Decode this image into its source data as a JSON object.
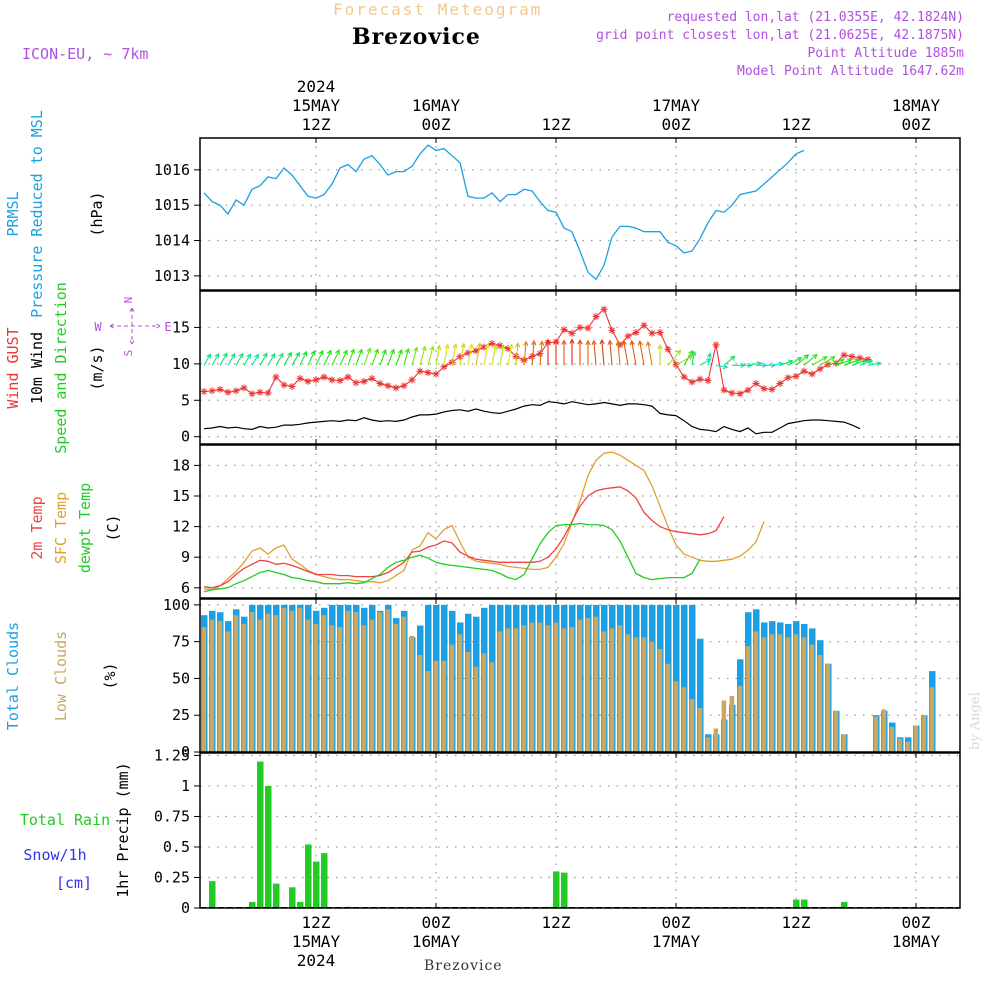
{
  "header": {
    "title": "Forecast Meteogram",
    "location": "Brezovice",
    "model": "ICON-EU, ~ 7km",
    "requested": "requested lon,lat (21.0355E, 42.1824N)",
    "grid_point": "grid point closest lon,lat (21.0625E, 42.1875N)",
    "point_altitude": "Point Altitude 1885m",
    "model_altitude": "Model Point Altitude 1647.62m",
    "credit": "by Angel",
    "bottom_label": "Brezovice"
  },
  "colors": {
    "pressure": "#1aa0e6",
    "gust": "#ee3333",
    "wind": "#000000",
    "temp2m": "#ee4444",
    "sfc_temp": "#e0a030",
    "dewpt": "#22cc22",
    "total_clouds": "#1aa0e6",
    "low_clouds": "#c8a860",
    "rain": "#22cc22",
    "snow": "#3333ee",
    "compass": "#b050e0"
  },
  "chart_data": {
    "type": "line",
    "x_unit": "hours",
    "x_range": [
      0,
      95
    ],
    "time_axis": {
      "top_ticks": [
        {
          "hour": 14.5,
          "lines": [
            "2024",
            "15MAY",
            "12Z"
          ]
        },
        {
          "hour": 29.5,
          "lines": [
            "16MAY",
            "00Z"
          ]
        },
        {
          "hour": 44.5,
          "lines": [
            "12Z"
          ]
        },
        {
          "hour": 59.5,
          "lines": [
            "17MAY",
            "00Z"
          ]
        },
        {
          "hour": 74.5,
          "lines": [
            "12Z"
          ]
        },
        {
          "hour": 89.5,
          "lines": [
            "18MAY",
            "00Z"
          ]
        }
      ],
      "bottom_ticks": [
        {
          "hour": 14.5,
          "lines": [
            "12Z",
            "15MAY",
            "2024"
          ]
        },
        {
          "hour": 29.5,
          "lines": [
            "00Z",
            "16MAY"
          ]
        },
        {
          "hour": 44.5,
          "lines": [
            "12Z"
          ]
        },
        {
          "hour": 59.5,
          "lines": [
            "00Z",
            "17MAY"
          ]
        },
        {
          "hour": 74.5,
          "lines": [
            "12Z"
          ]
        },
        {
          "hour": 89.5,
          "lines": [
            "00Z",
            "18MAY"
          ]
        }
      ]
    },
    "panels": [
      {
        "id": "pressure",
        "labels": [
          {
            "text": "PRMSL",
            "color": "#1aa0e6"
          },
          {
            "text": "Pressure Reduced to MSL",
            "color": "#1aa0e6"
          },
          {
            "text": "(hPa)",
            "color": "#000000"
          }
        ],
        "ylim": [
          1012.6,
          1016.9
        ],
        "yticks": [
          1013,
          1014,
          1015,
          1016
        ],
        "series": [
          {
            "values": [
              1015.35,
              1015.1,
              1015.0,
              1014.75,
              1015.15,
              1015.0,
              1015.45,
              1015.55,
              1015.8,
              1015.75,
              1016.05,
              1015.85,
              1015.55,
              1015.25,
              1015.2,
              1015.3,
              1015.6,
              1016.05,
              1016.15,
              1015.95,
              1016.3,
              1016.4,
              1016.15,
              1015.85,
              1015.95,
              1015.95,
              1016.1,
              1016.45,
              1016.7,
              1016.55,
              1016.6,
              1016.4,
              1016.2,
              1015.25,
              1015.2,
              1015.2,
              1015.35,
              1015.1,
              1015.3,
              1015.3,
              1015.45,
              1015.4,
              1015.1,
              1014.85,
              1014.8,
              1014.35,
              1014.25,
              1013.7,
              1013.1,
              1012.9,
              1013.3,
              1014.1,
              1014.4,
              1014.4,
              1014.35,
              1014.25,
              1014.25,
              1014.25,
              1013.95,
              1013.85,
              1013.65,
              1013.7,
              1014.05,
              1014.5,
              1014.85,
              1014.8,
              1015.0,
              1015.3,
              1015.35,
              1015.4,
              1015.6,
              1015.8,
              1016.0,
              1016.2,
              1016.45,
              1016.55
            ]
          }
        ]
      },
      {
        "id": "wind",
        "labels": [
          {
            "text": "Wind GUST",
            "color": "#ee3333"
          },
          {
            "text": "10m Wind",
            "color": "#000000"
          },
          {
            "text": "Speed and Direction",
            "color": "#22cc22"
          },
          {
            "text": "(m/s)",
            "color": "#000000"
          }
        ],
        "compass": {
          "n": "N",
          "s": "S",
          "e": "E",
          "w": "W"
        },
        "ylim": [
          -1,
          20
        ],
        "yticks": [
          0,
          5,
          10,
          15
        ],
        "wind_speed": [
          1.1,
          1.2,
          1.4,
          1.2,
          1.3,
          1.1,
          1.0,
          1.4,
          1.2,
          1.3,
          1.6,
          1.6,
          1.7,
          1.9,
          2.0,
          2.1,
          2.2,
          2.1,
          2.3,
          2.2,
          2.6,
          2.3,
          2.1,
          2.2,
          2.1,
          2.3,
          2.7,
          3.0,
          3.0,
          3.1,
          3.4,
          3.6,
          3.7,
          3.5,
          3.8,
          3.5,
          3.3,
          3.2,
          3.5,
          3.8,
          4.2,
          4.4,
          4.3,
          4.8,
          4.7,
          4.5,
          4.8,
          4.6,
          4.4,
          4.5,
          4.7,
          4.5,
          4.3,
          4.5,
          4.5,
          4.4,
          4.2,
          3.2,
          3.0,
          2.9,
          2.2,
          1.4,
          1.0,
          0.9,
          0.7,
          1.4,
          1.0,
          0.7,
          1.2,
          0.4,
          0.6,
          0.6,
          1.2,
          1.8,
          2.0,
          2.2,
          2.3,
          2.3,
          2.2,
          2.1,
          2.0,
          1.6,
          1.1
        ],
        "wind_gust": [
          6.2,
          6.3,
          6.5,
          6.1,
          6.3,
          6.7,
          5.9,
          6.1,
          6.0,
          8.2,
          7.1,
          6.9,
          8.0,
          7.6,
          7.8,
          8.2,
          7.8,
          7.7,
          8.2,
          7.4,
          7.6,
          8.0,
          7.3,
          7.0,
          6.7,
          7.0,
          7.8,
          9.0,
          8.8,
          8.6,
          9.6,
          10.2,
          11.0,
          11.5,
          11.8,
          12.3,
          12.8,
          12.5,
          12.1,
          11.0,
          10.5,
          11.0,
          11.4,
          12.9,
          13.0,
          14.7,
          14.2,
          15.0,
          14.9,
          16.5,
          17.5,
          14.6,
          12.6,
          13.8,
          14.3,
          15.3,
          14.2,
          14.3,
          12.0,
          9.9,
          8.2,
          7.5,
          7.9,
          7.7,
          12.6,
          6.4,
          6.0,
          5.9,
          6.4,
          7.3,
          6.6,
          6.5,
          7.3,
          8.1,
          8.3,
          9.0,
          8.6,
          9.3,
          9.9,
          10.1,
          11.2,
          11.0,
          10.8,
          10.6
        ],
        "arrow_row_y": 9.8,
        "wind_dir_deg": [
          210,
          210,
          210,
          210,
          210,
          210,
          210,
          210,
          210,
          210,
          210,
          210,
          205,
          205,
          205,
          205,
          205,
          205,
          200,
          200,
          200,
          200,
          200,
          200,
          200,
          195,
          195,
          195,
          195,
          190,
          190,
          190,
          190,
          190,
          190,
          190,
          190,
          190,
          190,
          185,
          185,
          185,
          185,
          180,
          180,
          180,
          180,
          180,
          180,
          175,
          175,
          175,
          175,
          170,
          170,
          170,
          170,
          180,
          220,
          240,
          210,
          190,
          240,
          190,
          280,
          230,
          270,
          270,
          260,
          270,
          270,
          260,
          250,
          240,
          230,
          230,
          240,
          240,
          250,
          250,
          250,
          250,
          250,
          260
        ]
      },
      {
        "id": "temperature",
        "labels": [
          {
            "text": "2m Temp",
            "color": "#ee4444"
          },
          {
            "text": "SFC Temp",
            "color": "#e0a030"
          },
          {
            "text": "dewpt Temp",
            "color": "#22cc22"
          },
          {
            "text": "(C)",
            "color": "#000000"
          }
        ],
        "ylim": [
          5,
          20
        ],
        "yticks": [
          6,
          9,
          12,
          15,
          18
        ],
        "series": [
          {
            "name": "SFC Temp",
            "key": "sfc_temp",
            "values": [
              5.9,
              5.8,
              6.2,
              6.9,
              7.6,
              8.5,
              9.6,
              9.9,
              9.3,
              9.9,
              10.2,
              8.8,
              8.3,
              7.7,
              7.3,
              7.1,
              6.9,
              6.8,
              6.8,
              6.7,
              6.6,
              6.6,
              6.5,
              6.7,
              7.2,
              7.7,
              9.7,
              10.1,
              11.4,
              10.8,
              11.7,
              12.1,
              10.5,
              9.0,
              8.6,
              8.5,
              8.4,
              8.3,
              8.1,
              8.0,
              7.9,
              7.8,
              7.8,
              8.0,
              9.0,
              10.3,
              12.4,
              14.5,
              17.0,
              18.5,
              19.2,
              19.3,
              19.0,
              18.5,
              18.0,
              17.5,
              16.0,
              14.0,
              12.0,
              10.2,
              9.3,
              9.0,
              8.7,
              8.6,
              8.6,
              8.7,
              8.8,
              9.1,
              9.7,
              10.5,
              12.5
            ]
          },
          {
            "name": "2m Temp",
            "key": "temp2m",
            "values": [
              6.1,
              6.0,
              6.2,
              6.6,
              7.3,
              7.9,
              8.3,
              8.7,
              8.6,
              8.3,
              8.4,
              8.2,
              7.9,
              7.6,
              7.3,
              7.3,
              7.3,
              7.2,
              7.2,
              7.1,
              7.1,
              7.1,
              7.2,
              7.5,
              8.0,
              8.5,
              9.5,
              9.6,
              10.0,
              10.2,
              10.6,
              10.4,
              9.5,
              9.1,
              8.8,
              8.7,
              8.6,
              8.5,
              8.5,
              8.5,
              8.5,
              8.5,
              8.6,
              9.0,
              9.8,
              11.0,
              12.5,
              14.0,
              15.0,
              15.5,
              15.7,
              15.8,
              15.9,
              15.5,
              14.8,
              13.4,
              12.6,
              12.0,
              11.7,
              11.5,
              11.4,
              11.3,
              11.2,
              11.3,
              11.6,
              13.0
            ]
          },
          {
            "name": "dewpt Temp",
            "key": "dewpt",
            "values": [
              5.6,
              5.8,
              5.9,
              6.0,
              6.4,
              6.7,
              7.1,
              7.5,
              7.7,
              7.5,
              7.3,
              7.0,
              6.9,
              6.7,
              6.6,
              6.4,
              6.4,
              6.4,
              6.5,
              6.4,
              6.5,
              6.9,
              7.3,
              8.0,
              8.5,
              8.7,
              9.0,
              9.2,
              8.9,
              8.5,
              8.3,
              8.2,
              8.1,
              8.0,
              7.9,
              7.8,
              7.7,
              7.4,
              7.0,
              6.8,
              7.3,
              8.8,
              10.3,
              11.4,
              12.1,
              12.2,
              12.2,
              12.3,
              12.2,
              12.2,
              12.1,
              11.7,
              10.6,
              9.0,
              7.4,
              7.0,
              6.8,
              6.9,
              7.0,
              7.0,
              7.0,
              7.4,
              8.8
            ]
          }
        ]
      },
      {
        "id": "clouds",
        "labels": [
          {
            "text": "Total Clouds",
            "color": "#1aa0e6"
          },
          {
            "text": "Low Clouds",
            "color": "#c8a860"
          },
          {
            "text": "(%)",
            "color": "#000000"
          }
        ],
        "ylim": [
          0,
          104
        ],
        "yticks": [
          0,
          25,
          50,
          75,
          100
        ],
        "total_clouds": [
          93,
          96,
          95,
          89,
          97,
          92,
          100,
          100,
          100,
          100,
          100,
          100,
          100,
          100,
          96,
          98,
          100,
          100,
          100,
          100,
          98,
          100,
          96,
          100,
          91,
          96,
          78,
          86,
          100,
          100,
          100,
          96,
          88,
          94,
          92,
          98,
          100,
          100,
          100,
          100,
          100,
          100,
          100,
          100,
          100,
          100,
          100,
          100,
          100,
          100,
          100,
          100,
          100,
          100,
          100,
          100,
          100,
          100,
          100,
          100,
          100,
          100,
          77,
          12,
          12,
          22,
          32,
          63,
          95,
          97,
          88,
          89,
          88,
          87,
          89,
          87,
          84,
          76,
          60,
          28,
          12,
          0,
          0,
          0,
          25,
          28,
          20,
          10,
          10,
          18,
          25,
          55
        ],
        "low_clouds": [
          85,
          90,
          89,
          82,
          93,
          87,
          95,
          90,
          94,
          93,
          98,
          96,
          98,
          90,
          87,
          93,
          86,
          85,
          96,
          95,
          86,
          90,
          95,
          97,
          87,
          92,
          79,
          66,
          55,
          62,
          62,
          73,
          80,
          68,
          58,
          67,
          61,
          82,
          84,
          84,
          86,
          88,
          88,
          86,
          88,
          84,
          85,
          90,
          91,
          92,
          82,
          84,
          86,
          80,
          78,
          78,
          75,
          70,
          60,
          48,
          44,
          36,
          30,
          10,
          16,
          35,
          38,
          45,
          72,
          82,
          78,
          80,
          80,
          78,
          80,
          78,
          73,
          66,
          60,
          28,
          12,
          0,
          0,
          0,
          24,
          29,
          17,
          9,
          7,
          18,
          25,
          44
        ],
        "bar_series": [
          {
            "name": "Total Clouds",
            "key": "total_clouds"
          },
          {
            "name": "Low Clouds",
            "key": "low_clouds"
          }
        ]
      },
      {
        "id": "precip",
        "labels": [
          {
            "text": "1hr Precip (mm)",
            "color": "#000000"
          }
        ],
        "side_labels": [
          {
            "text": "Total  Rain",
            "color": "#22cc22"
          },
          {
            "text": "Snow/1h",
            "color": "#3333ee"
          },
          {
            "text": "[cm]",
            "color": "#3333ee"
          }
        ],
        "ylim": [
          0,
          1.27
        ],
        "yticks": [
          0,
          0.25,
          0.5,
          0.75,
          1,
          1.25
        ],
        "ytick_labels": [
          "0",
          "0.25",
          "0.5",
          "0.75",
          "1",
          "1.25"
        ],
        "rain": [
          {
            "hour": 1,
            "v": 0.22
          },
          {
            "hour": 6,
            "v": 0.05
          },
          {
            "hour": 7,
            "v": 1.2
          },
          {
            "hour": 8,
            "v": 1.0
          },
          {
            "hour": 9,
            "v": 0.2
          },
          {
            "hour": 11,
            "v": 0.17
          },
          {
            "hour": 12,
            "v": 0.05
          },
          {
            "hour": 13,
            "v": 0.52
          },
          {
            "hour": 14,
            "v": 0.38
          },
          {
            "hour": 15,
            "v": 0.45
          },
          {
            "hour": 18,
            "v": 0.01
          },
          {
            "hour": 43,
            "v": 0.01
          },
          {
            "hour": 44,
            "v": 0.3
          },
          {
            "hour": 45,
            "v": 0.29
          },
          {
            "hour": 74,
            "v": 0.07
          },
          {
            "hour": 75,
            "v": 0.07
          },
          {
            "hour": 79,
            "v": 0.01
          },
          {
            "hour": 80,
            "v": 0.05
          }
        ]
      }
    ]
  }
}
